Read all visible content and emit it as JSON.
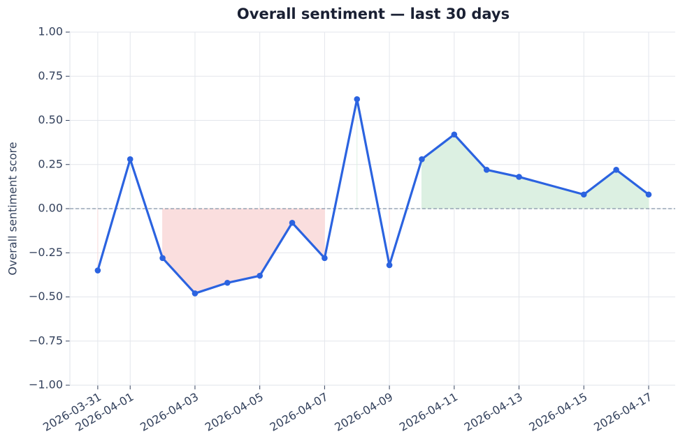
{
  "chart_data": {
    "type": "line",
    "title": "Overall sentiment — last 30 days",
    "y_label": "Overall sentiment score",
    "x": [
      "2026-03-31",
      "2026-04-01",
      "2026-04-02",
      "2026-04-03",
      "2026-04-04",
      "2026-04-05",
      "2026-04-06",
      "2026-04-07",
      "2026-04-08",
      "2026-04-09",
      "2026-04-10",
      "2026-04-11",
      "2026-04-12",
      "2026-04-13",
      "2026-04-15",
      "2026-04-16",
      "2026-04-17"
    ],
    "series": [
      {
        "name": "Overall sentiment",
        "color": "#2b63e0",
        "values": [
          -0.35,
          0.28,
          -0.28,
          -0.48,
          -0.42,
          -0.38,
          -0.08,
          -0.28,
          0.62,
          -0.32,
          0.28,
          0.42,
          0.22,
          0.18,
          0.08,
          0.22,
          0.08
        ]
      }
    ],
    "positive_fill": "#dcf0e2",
    "negative_fill": "#fadede",
    "hline": 0,
    "ylim": [
      -1,
      1
    ],
    "yticks": [
      {
        "value": -1,
        "label": "−1.00"
      },
      {
        "value": -0.75,
        "label": "−0.75"
      },
      {
        "value": -0.5,
        "label": "−0.50"
      },
      {
        "value": -0.25,
        "label": "−0.25"
      },
      {
        "value": 0,
        "label": "0.00"
      },
      {
        "value": 0.25,
        "label": "0.25"
      },
      {
        "value": 0.5,
        "label": "0.50"
      },
      {
        "value": 0.75,
        "label": "0.75"
      },
      {
        "value": 1,
        "label": "1.00"
      }
    ],
    "xticks": [
      "2026-03-31",
      "2026-04-01",
      "2026-04-03",
      "2026-04-05",
      "2026-04-07",
      "2026-04-09",
      "2026-04-11",
      "2026-04-13",
      "2026-04-15",
      "2026-04-17"
    ],
    "grid": true
  }
}
